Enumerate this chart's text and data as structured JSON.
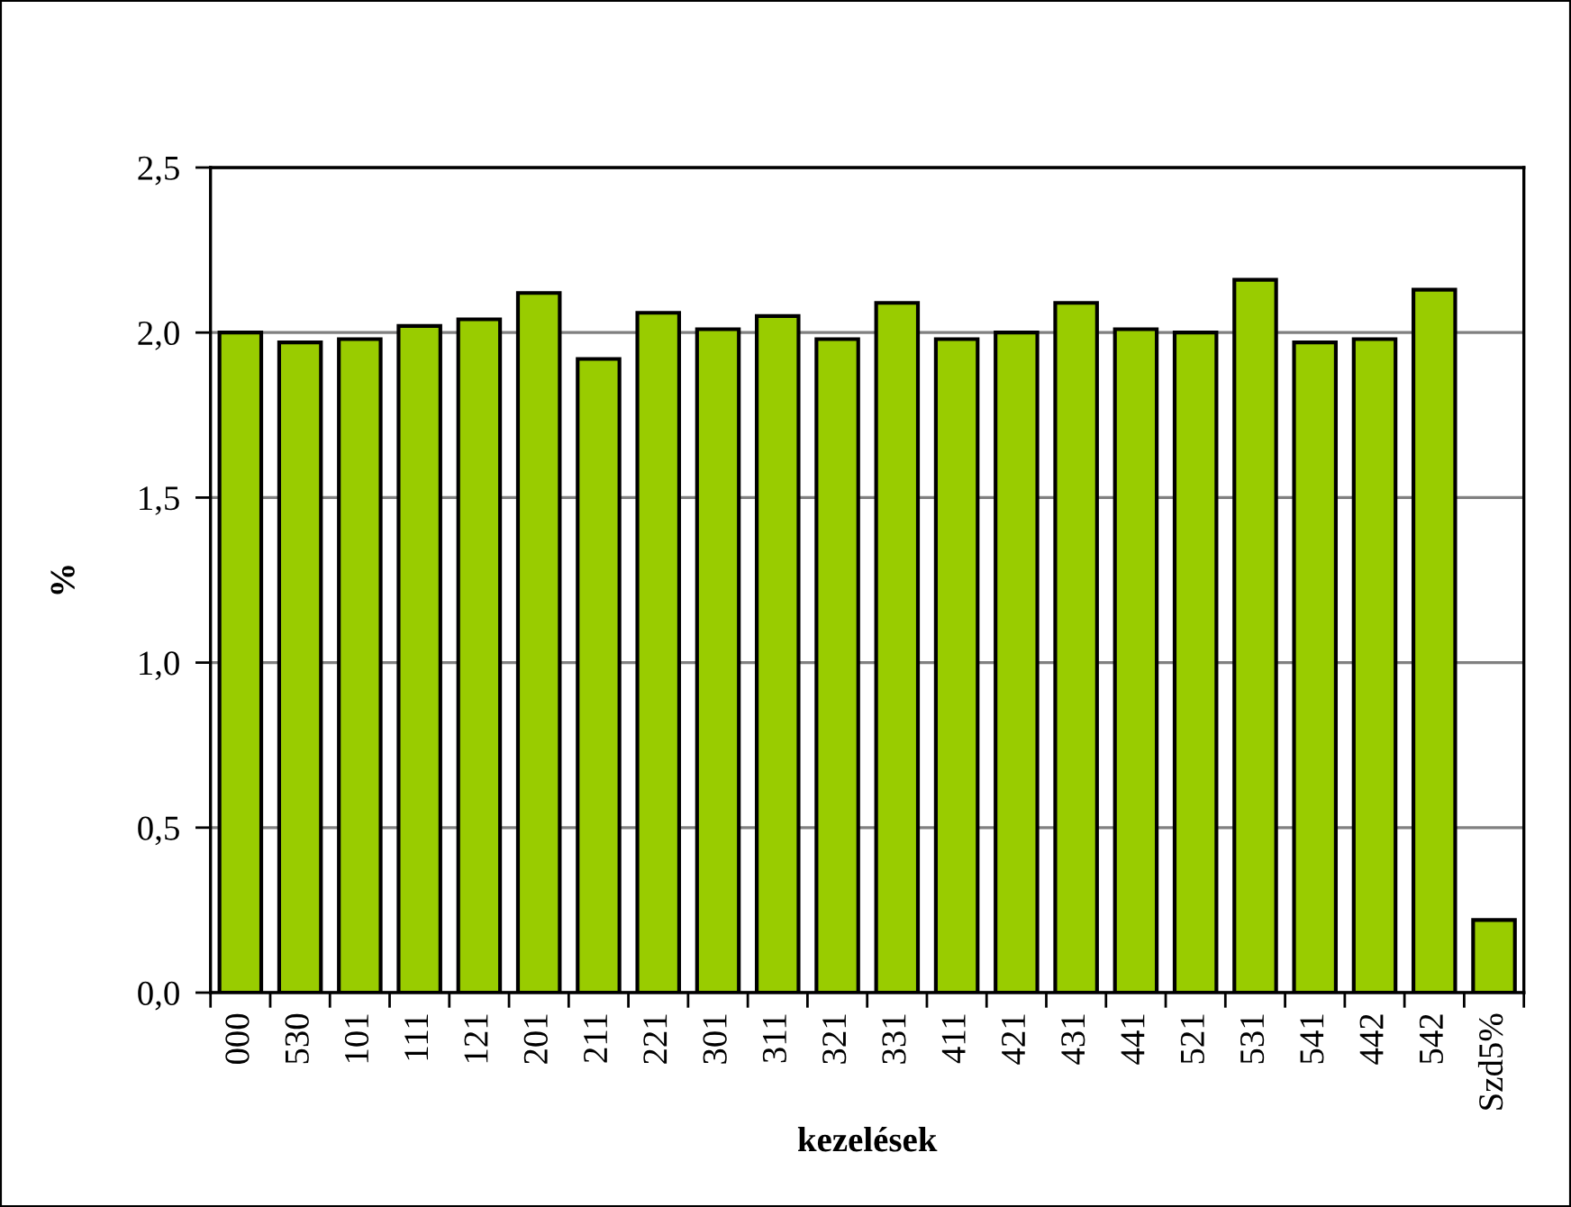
{
  "chart_data": {
    "type": "bar",
    "xlabel": "kezelések",
    "ylabel": "%",
    "categories": [
      "000",
      "530",
      "101",
      "111",
      "121",
      "201",
      "211",
      "221",
      "301",
      "311",
      "321",
      "331",
      "411",
      "421",
      "431",
      "441",
      "521",
      "531",
      "541",
      "442",
      "542",
      "Szd5%"
    ],
    "values": [
      2.0,
      1.97,
      1.98,
      2.02,
      2.04,
      2.12,
      1.92,
      2.06,
      2.01,
      2.05,
      1.98,
      2.09,
      1.98,
      2.0,
      2.09,
      2.01,
      2.0,
      2.16,
      1.97,
      1.98,
      2.13,
      0.22
    ],
    "color": "#99cc00",
    "ylim": [
      0,
      2.5
    ],
    "yticks": [
      {
        "value": 0,
        "label": "0,0"
      },
      {
        "value": 0.5,
        "label": "0,5"
      },
      {
        "value": 1,
        "label": "1,0"
      },
      {
        "value": 1.5,
        "label": "1,5"
      },
      {
        "value": 2,
        "label": "2,0"
      },
      {
        "value": 2.5,
        "label": "2,5"
      }
    ],
    "grid": "y"
  }
}
